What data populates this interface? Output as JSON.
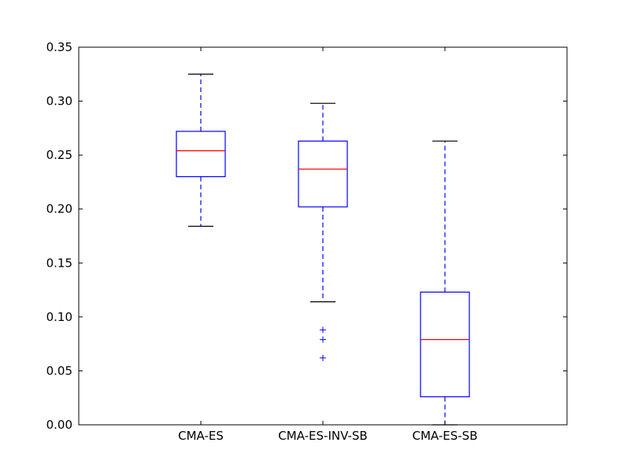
{
  "chart_data": {
    "type": "box",
    "title": "",
    "xlabel": "",
    "ylabel": "",
    "ylim": [
      0.0,
      0.35
    ],
    "yticks": [
      0.0,
      0.05,
      0.1,
      0.15,
      0.2,
      0.25,
      0.3,
      0.35
    ],
    "ytick_labels": [
      "0.00",
      "0.05",
      "0.10",
      "0.15",
      "0.20",
      "0.25",
      "0.30",
      "0.35"
    ],
    "grid": false,
    "categories": [
      "CMA-ES",
      "CMA-ES-INV-SB",
      "CMA-ES-SB"
    ],
    "boxes": [
      {
        "whisker_low": 0.184,
        "q1": 0.23,
        "median": 0.254,
        "q3": 0.272,
        "whisker_high": 0.325,
        "outliers": []
      },
      {
        "whisker_low": 0.114,
        "q1": 0.202,
        "median": 0.237,
        "q3": 0.263,
        "whisker_high": 0.298,
        "outliers": [
          0.088,
          0.079,
          0.062
        ]
      },
      {
        "whisker_low": 0.0,
        "q1": 0.026,
        "median": 0.079,
        "q3": 0.123,
        "whisker_high": 0.263,
        "outliers": []
      }
    ],
    "colors": {
      "box": "#0000ff",
      "median": "#ff0000",
      "cap": "#000000",
      "outlier": "#0000ff"
    }
  }
}
